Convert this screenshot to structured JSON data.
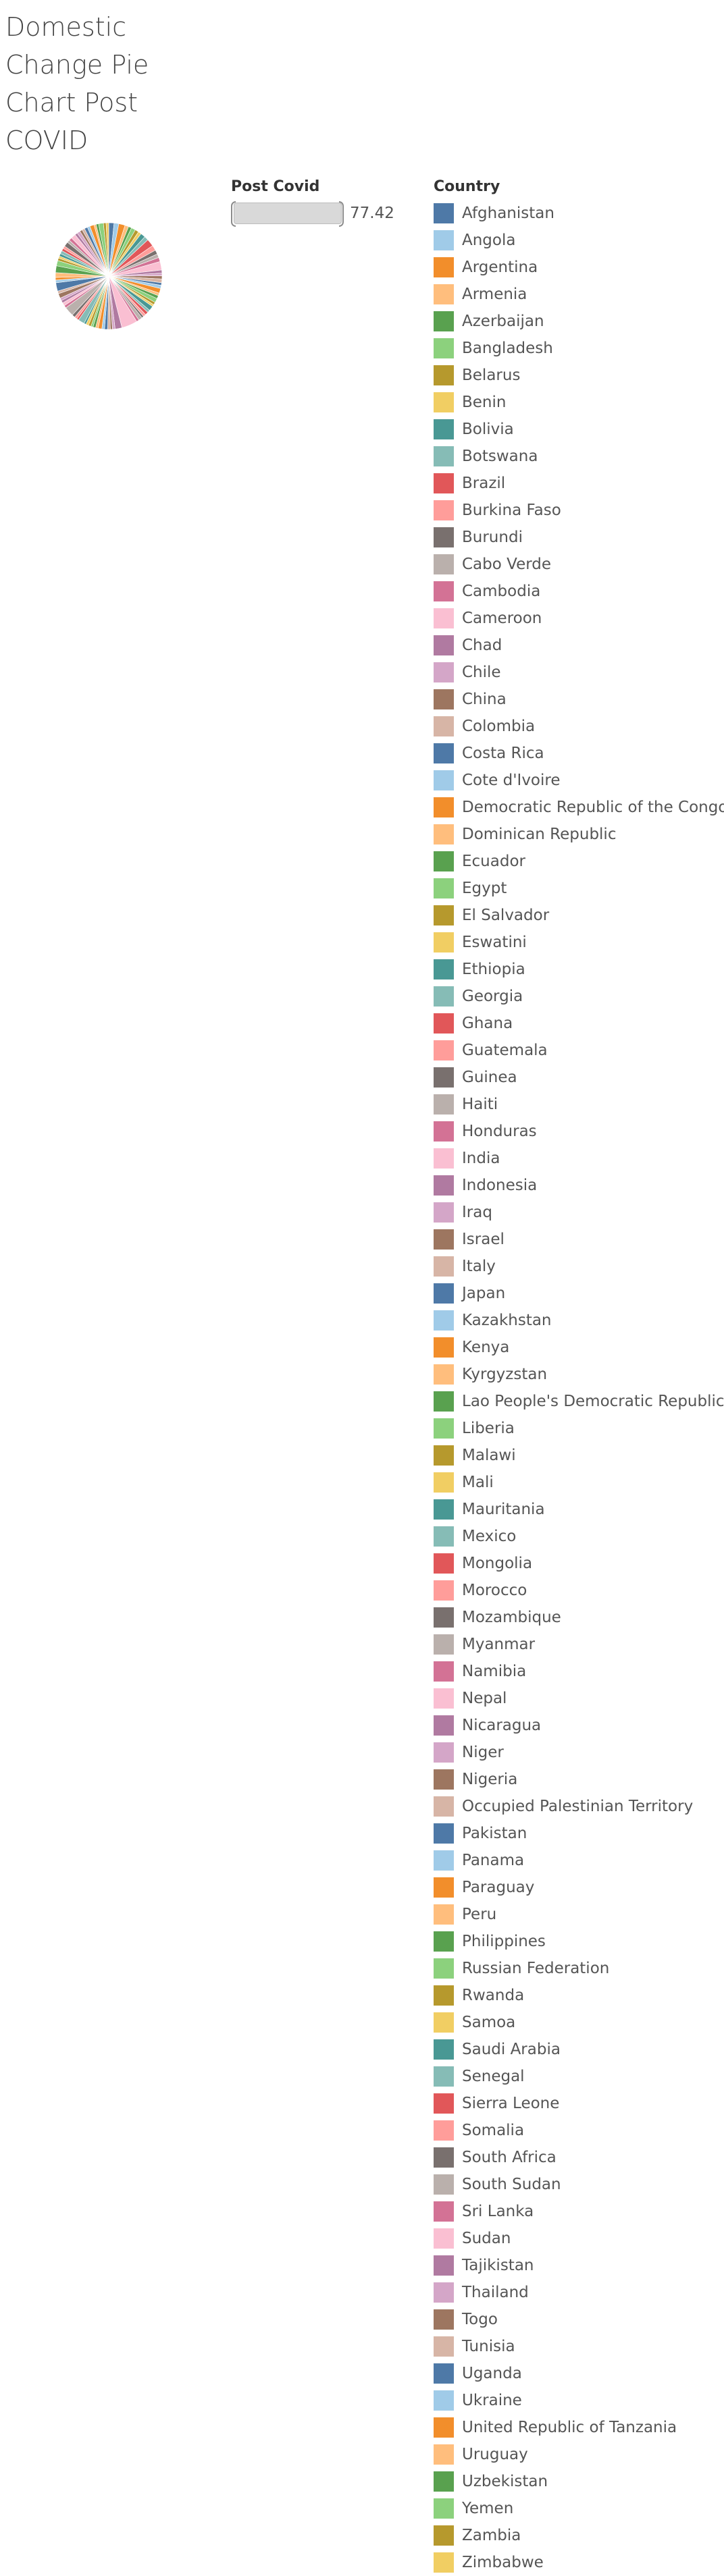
{
  "title": "Domestic Change Pie Chart Post COVID",
  "filter": {
    "label": "Post Covid",
    "value": "77.42"
  },
  "chart_data": {
    "type": "pie",
    "legend_title": "Country",
    "legend_placement": "right",
    "categories": [
      "Afghanistan",
      "Angola",
      "Argentina",
      "Armenia",
      "Azerbaijan",
      "Bangladesh",
      "Belarus",
      "Benin",
      "Bolivia",
      "Botswana",
      "Brazil",
      "Burkina Faso",
      "Burundi",
      "Cabo Verde",
      "Cambodia",
      "Cameroon",
      "Chad",
      "Chile",
      "China",
      "Colombia",
      "Costa Rica",
      "Cote d'Ivoire",
      "Democratic Republic of the Congo",
      "Dominican Republic",
      "Ecuador",
      "Egypt",
      "El Salvador",
      "Eswatini",
      "Ethiopia",
      "Georgia",
      "Ghana",
      "Guatemala",
      "Guinea",
      "Haiti",
      "Honduras",
      "India",
      "Indonesia",
      "Iraq",
      "Israel",
      "Italy",
      "Japan",
      "Kazakhstan",
      "Kenya",
      "Kyrgyzstan",
      "Lao People's Democratic Republic",
      "Liberia",
      "Malawi",
      "Mali",
      "Mauritania",
      "Mexico",
      "Mongolia",
      "Morocco",
      "Mozambique",
      "Myanmar",
      "Namibia",
      "Nepal",
      "Nicaragua",
      "Niger",
      "Nigeria",
      "Occupied Palestinian Territory",
      "Pakistan",
      "Panama",
      "Paraguay",
      "Peru",
      "Philippines",
      "Russian Federation",
      "Rwanda",
      "Samoa",
      "Saudi Arabia",
      "Senegal",
      "Sierra Leone",
      "Somalia",
      "South Africa",
      "South Sudan",
      "Sri Lanka",
      "Sudan",
      "Tajikistan",
      "Thailand",
      "Togo",
      "Tunisia",
      "Uganda",
      "Ukraine",
      "United Republic of Tanzania",
      "Uruguay",
      "Uzbekistan",
      "Yemen",
      "Zambia",
      "Zimbabwe"
    ],
    "colors": [
      "#4e79a7",
      "#a0cbe8",
      "#f28e2b",
      "#ffbe7d",
      "#59a14f",
      "#8cd17d",
      "#b6992d",
      "#f1ce63",
      "#499894",
      "#86bcb6",
      "#e15759",
      "#ff9d9a",
      "#79706e",
      "#bab0ac",
      "#d37295",
      "#fabfd2",
      "#b07aa1",
      "#d4a6c8",
      "#9d7660",
      "#d7b5a6"
    ],
    "values": [
      1.0,
      0.9,
      1.2,
      0.7,
      0.6,
      0.8,
      0.7,
      0.6,
      0.9,
      0.8,
      1.4,
      1.0,
      0.8,
      0.7,
      0.8,
      1.6,
      0.6,
      0.5,
      0.6,
      0.7,
      0.5,
      0.6,
      0.9,
      0.5,
      0.6,
      0.8,
      0.5,
      0.4,
      0.9,
      0.5,
      0.6,
      0.5,
      0.4,
      0.7,
      0.5,
      3.0,
      1.3,
      0.5,
      0.4,
      0.5,
      0.6,
      0.5,
      0.7,
      0.5,
      0.5,
      0.4,
      0.5,
      0.5,
      0.4,
      1.2,
      0.4,
      0.5,
      0.6,
      1.8,
      0.5,
      0.6,
      0.5,
      0.5,
      0.9,
      0.5,
      1.6,
      0.5,
      0.5,
      0.9,
      1.3,
      1.0,
      0.5,
      0.4,
      0.5,
      0.6,
      0.5,
      0.5,
      0.9,
      0.5,
      0.6,
      0.9,
      0.5,
      0.6,
      0.5,
      0.5,
      0.6,
      0.5,
      0.8,
      0.4,
      0.5,
      0.9,
      0.5,
      0.5
    ]
  }
}
